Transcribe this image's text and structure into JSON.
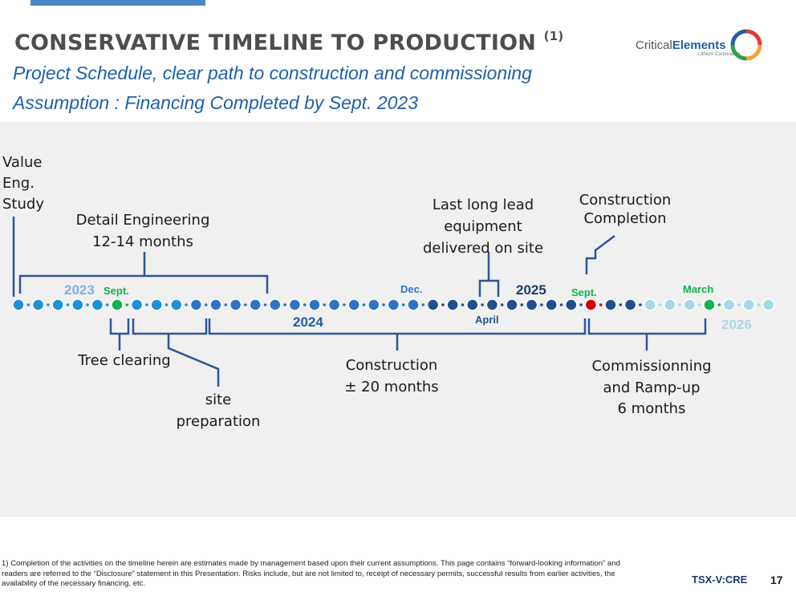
{
  "header": {
    "title": "CONSERVATIVE TIMELINE TO PRODUCTION",
    "title_note": "(1)",
    "subtitle1": "Project Schedule, clear path to construction and commissioning",
    "subtitle2": "Assumption : Financing Completed by Sept. 2023"
  },
  "logo": {
    "part1": "Critical",
    "part2": "Elements",
    "tagline": "Lithium Corporation"
  },
  "timeline": {
    "dot_count": 39,
    "dot_colors": {
      "phase1": "#1e90d8",
      "phase2": "#2f74c4",
      "phase3": "#1f4f8f",
      "phase4": "#a8d8e8",
      "sept": "#15b04e",
      "completion": "#d40000"
    },
    "years": [
      "2023",
      "2024",
      "2025",
      "2026"
    ],
    "months": [
      "Sept.",
      "Dec.",
      "April",
      "Sept.",
      "March"
    ],
    "labels": {
      "value_eng": [
        "Value",
        "Eng.",
        "Study"
      ],
      "detail_eng": [
        "Detail Engineering",
        "12-14 months"
      ],
      "last_long_lead": [
        "Last long lead",
        "equipment",
        "delivered on site"
      ],
      "construction_completion": [
        "Construction",
        "Completion"
      ],
      "tree_clearing": "Tree clearing",
      "site_prep": [
        "site",
        "preparation"
      ],
      "construction": [
        "Construction",
        "± 20 months"
      ],
      "commissioning": [
        "Commissionning",
        "and Ramp-up",
        "6 months"
      ]
    }
  },
  "footer": {
    "footnote": "1) Completion of the activities on the timeline herein are estimates made by management based upon their current assumptions. This page contains “forward-looking information” and readers are referred to the “Disclosure” statement in this Presentation. Risks include, but are not limited to, receipt of necessary permits, successful results from earlier activities, the availability of the necessary financing, etc.",
    "ticker": "TSX-V:CRE",
    "page": "17"
  }
}
